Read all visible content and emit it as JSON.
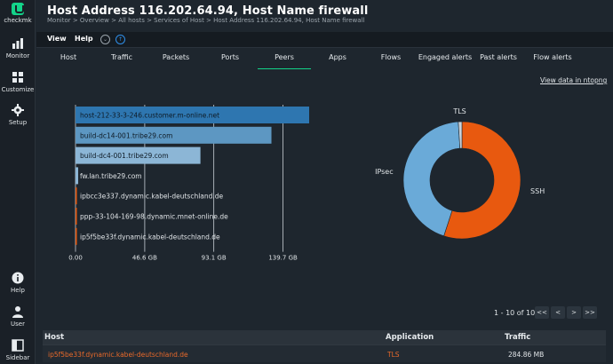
{
  "app": {
    "logo_text": "checkmk"
  },
  "sidebar": {
    "items": [
      {
        "label": "Monitor"
      },
      {
        "label": "Customize"
      },
      {
        "label": "Setup"
      },
      {
        "label": "Help"
      },
      {
        "label": "User"
      },
      {
        "label": "Sidebar"
      }
    ]
  },
  "header": {
    "title": "Host Address 116.202.64.94, Host Name firewall",
    "breadcrumb": "Monitor > Overview > All hosts > Services of Host > Host Address 116.202.64.94, Host Name firewall"
  },
  "menubar": {
    "view": "View",
    "help": "Help"
  },
  "tabs": [
    {
      "label": "Host"
    },
    {
      "label": "Traffic"
    },
    {
      "label": "Packets"
    },
    {
      "label": "Ports"
    },
    {
      "label": "Peers",
      "active": true
    },
    {
      "label": "Apps"
    },
    {
      "label": "Flows"
    },
    {
      "label": "Engaged alerts"
    },
    {
      "label": "Past alerts"
    },
    {
      "label": "Flow alerts"
    }
  ],
  "view_link": "View data in ntopng",
  "colors": {
    "accent": "#13d389",
    "bar_dark": "#2e76b0",
    "bar_mid": "#5d97c2",
    "bar_light": "#8cb6d6",
    "ssh": "#e8590f",
    "ipsec": "#6aaad8",
    "tls": "#c9d3db"
  },
  "chart_data": [
    {
      "type": "bar",
      "orientation": "horizontal",
      "categories": [
        "host-212-33-3-246.customer.m-online.net",
        "build-dc14-001.tribe29.com",
        "build-dc4-001.tribe29.com",
        "fw.lan.tribe29.com",
        "ipbcc3e337.dynamic.kabel-deutschland.de",
        "ppp-33-104-169-98.dynamic.mnet-online.de",
        "ip5f5be33f.dynamic.kabel-deutschland.de"
      ],
      "values": [
        157.3,
        131.9,
        84.1,
        1.8,
        0.9,
        0.5,
        0.3
      ],
      "unit": "GB",
      "xticks": [
        "0.00",
        "46.6 GB",
        "93.1 GB",
        "139.7 GB"
      ],
      "xtick_values": [
        0,
        46.6,
        93.1,
        139.7
      ],
      "xlim": [
        0,
        157.3
      ]
    },
    {
      "type": "pie",
      "style": "donut",
      "labels": [
        "SSH",
        "IPsec",
        "TLS"
      ],
      "values": [
        55,
        44,
        1
      ]
    }
  ],
  "pagination": {
    "info": "1 - 10 of 10",
    "first": "<<",
    "prev": "<",
    "next": ">",
    "last": ">>"
  },
  "table": {
    "columns": [
      "Host",
      "Application",
      "Traffic"
    ],
    "rows": [
      {
        "host": "ip5f5be33f.dynamic.kabel-deutschland.de",
        "application": "TLS",
        "traffic": "284.86 MB"
      }
    ]
  }
}
